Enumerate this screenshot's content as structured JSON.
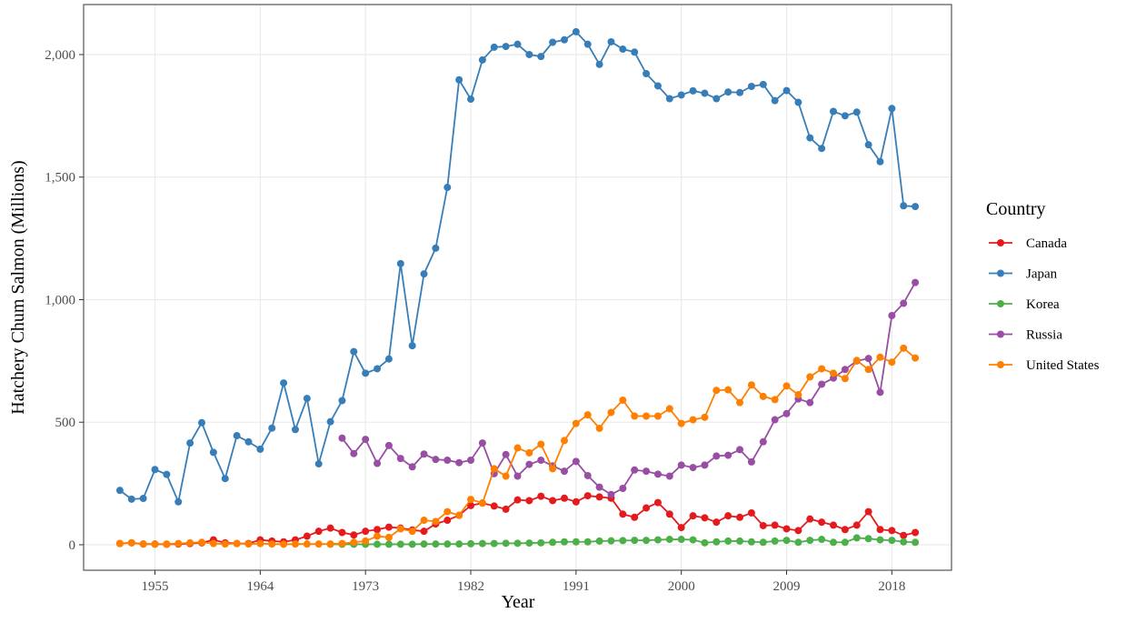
{
  "chart_data": {
    "type": "line",
    "x_label": "Year",
    "y_label": "Hatchery Chum Salmon (Millions)",
    "legend_title": "Country",
    "legend": "right",
    "grid": true,
    "xlim": [
      1948.9,
      2023.1
    ],
    "xticks": [
      1955,
      1964,
      1973,
      1982,
      1991,
      2000,
      2009,
      2018
    ],
    "ylim": [
      -104,
      2204
    ],
    "yticks": [
      0,
      500,
      {
        "value": 1000,
        "label": "1,000"
      },
      {
        "value": 1500,
        "label": "1,500"
      },
      {
        "value": 2000,
        "label": "2,000"
      }
    ],
    "x": [
      1952,
      1953,
      1954,
      1955,
      1956,
      1957,
      1958,
      1959,
      1960,
      1961,
      1962,
      1963,
      1964,
      1965,
      1966,
      1967,
      1968,
      1969,
      1970,
      1971,
      1972,
      1973,
      1974,
      1975,
      1976,
      1977,
      1978,
      1979,
      1980,
      1981,
      1982,
      1983,
      1984,
      1985,
      1986,
      1987,
      1988,
      1989,
      1990,
      1991,
      1992,
      1993,
      1994,
      1995,
      1996,
      1997,
      1998,
      1999,
      2000,
      2001,
      2002,
      2003,
      2004,
      2005,
      2006,
      2007,
      2008,
      2009,
      2010,
      2011,
      2012,
      2013,
      2014,
      2015,
      2016,
      2017,
      2018,
      2019,
      2020
    ],
    "series": [
      {
        "name": "Canada",
        "color": "#e41a1c",
        "values": [
          5,
          8,
          3,
          3,
          2,
          3,
          5,
          8,
          20,
          8,
          5,
          5,
          20,
          15,
          12,
          20,
          35,
          55,
          68,
          50,
          40,
          55,
          62,
          72,
          68,
          60,
          55,
          85,
          100,
          120,
          160,
          170,
          158,
          145,
          183,
          180,
          198,
          180,
          190,
          175,
          200,
          195,
          190,
          125,
          112,
          150,
          172,
          125,
          70,
          118,
          110,
          92,
          118,
          112,
          130,
          78,
          80,
          65,
          58,
          105,
          92,
          80,
          62,
          80,
          135,
          62,
          58,
          38,
          50
        ]
      },
      {
        "name": "Japan",
        "color": "#377eb8",
        "values": [
          222,
          186,
          189,
          307,
          287,
          175,
          415,
          498,
          377,
          270,
          445,
          420,
          390,
          476,
          660,
          470,
          597,
          330,
          502,
          588,
          788,
          700,
          718,
          758,
          1147,
          812,
          1105,
          1210,
          1458,
          1897,
          1818,
          1978,
          2030,
          2033,
          2042,
          2000,
          1992,
          2050,
          2060,
          2093,
          2042,
          1960,
          2052,
          2022,
          2010,
          1922,
          1872,
          1820,
          1835,
          1852,
          1842,
          1820,
          1847,
          1845,
          1870,
          1878,
          1812,
          1853,
          1805,
          1660,
          1617,
          1768,
          1750,
          1765,
          1632,
          1563,
          1780,
          1383,
          1380
        ]
      },
      {
        "name": "Korea",
        "color": "#4daf4a",
        "values": [
          null,
          null,
          null,
          null,
          null,
          null,
          null,
          null,
          null,
          null,
          null,
          null,
          null,
          null,
          null,
          null,
          null,
          null,
          2,
          2,
          2,
          2,
          2,
          2,
          2,
          2,
          3,
          3,
          3,
          3,
          4,
          5,
          5,
          6,
          6,
          7,
          8,
          10,
          12,
          12,
          12,
          15,
          16,
          17,
          18,
          18,
          20,
          22,
          22,
          20,
          8,
          12,
          15,
          15,
          12,
          10,
          15,
          18,
          10,
          18,
          22,
          10,
          10,
          28,
          25,
          20,
          18,
          12,
          10
        ]
      },
      {
        "name": "Russia",
        "color": "#984ea3",
        "values": [
          null,
          null,
          null,
          null,
          null,
          null,
          null,
          null,
          null,
          null,
          null,
          null,
          null,
          null,
          null,
          null,
          null,
          null,
          null,
          435,
          372,
          430,
          332,
          405,
          352,
          318,
          370,
          348,
          345,
          335,
          345,
          415,
          290,
          368,
          280,
          328,
          345,
          322,
          300,
          340,
          282,
          235,
          205,
          230,
          305,
          300,
          288,
          280,
          325,
          315,
          325,
          362,
          365,
          388,
          338,
          420,
          510,
          535,
          595,
          580,
          655,
          680,
          715,
          750,
          760,
          622,
          935,
          985,
          1070
        ]
      },
      {
        "name": "United States",
        "color": "#ff7f00",
        "values": [
          5,
          8,
          3,
          2,
          3,
          5,
          8,
          10,
          5,
          3,
          5,
          3,
          5,
          3,
          2,
          3,
          3,
          3,
          3,
          5,
          10,
          15,
          35,
          30,
          65,
          55,
          100,
          95,
          135,
          120,
          185,
          170,
          310,
          280,
          395,
          375,
          410,
          310,
          425,
          495,
          530,
          475,
          540,
          590,
          525,
          525,
          525,
          555,
          495,
          510,
          520,
          630,
          632,
          580,
          652,
          605,
          592,
          648,
          612,
          685,
          718,
          700,
          678,
          752,
          715,
          765,
          745,
          802,
          762
        ]
      }
    ]
  }
}
